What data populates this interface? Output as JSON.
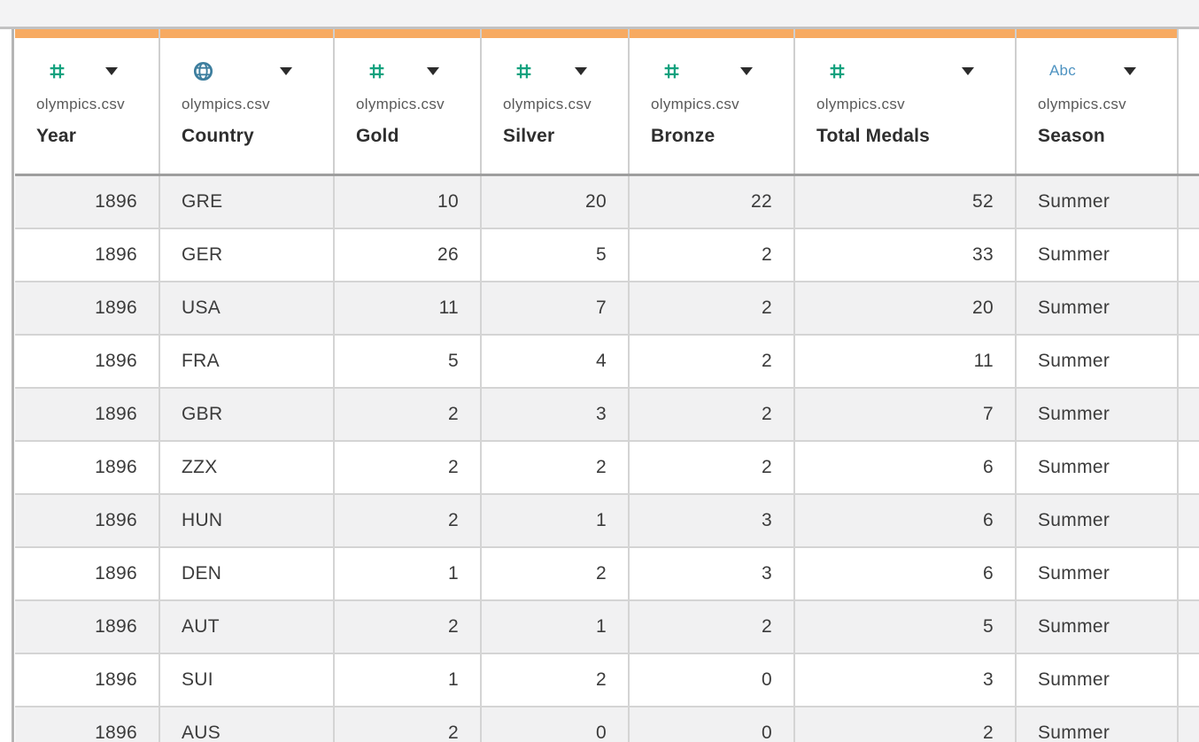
{
  "source_file": "olympics.csv",
  "type_labels": {
    "string": "Abc"
  },
  "colors": {
    "accent_strip": "#F7AA61",
    "number_icon": "#12A17E",
    "geo_icon": "#3D7E9E",
    "string_icon": "#4E93C1",
    "row_stripe": "#f1f1f2"
  },
  "columns": [
    {
      "name": "Year",
      "source": "olympics.csv",
      "type": "number",
      "align": "right"
    },
    {
      "name": "Country",
      "source": "olympics.csv",
      "type": "geographic",
      "align": "left"
    },
    {
      "name": "Gold",
      "source": "olympics.csv",
      "type": "number",
      "align": "right"
    },
    {
      "name": "Silver",
      "source": "olympics.csv",
      "type": "number",
      "align": "right"
    },
    {
      "name": "Bronze",
      "source": "olympics.csv",
      "type": "number",
      "align": "right"
    },
    {
      "name": "Total Medals",
      "source": "olympics.csv",
      "type": "number",
      "align": "right"
    },
    {
      "name": "Season",
      "source": "olympics.csv",
      "type": "string",
      "align": "left"
    }
  ],
  "rows": [
    [
      "1896",
      "GRE",
      "10",
      "20",
      "22",
      "52",
      "Summer"
    ],
    [
      "1896",
      "GER",
      "26",
      "5",
      "2",
      "33",
      "Summer"
    ],
    [
      "1896",
      "USA",
      "11",
      "7",
      "2",
      "20",
      "Summer"
    ],
    [
      "1896",
      "FRA",
      "5",
      "4",
      "2",
      "11",
      "Summer"
    ],
    [
      "1896",
      "GBR",
      "2",
      "3",
      "2",
      "7",
      "Summer"
    ],
    [
      "1896",
      "ZZX",
      "2",
      "2",
      "2",
      "6",
      "Summer"
    ],
    [
      "1896",
      "HUN",
      "2",
      "1",
      "3",
      "6",
      "Summer"
    ],
    [
      "1896",
      "DEN",
      "1",
      "2",
      "3",
      "6",
      "Summer"
    ],
    [
      "1896",
      "AUT",
      "2",
      "1",
      "2",
      "5",
      "Summer"
    ],
    [
      "1896",
      "SUI",
      "1",
      "2",
      "0",
      "3",
      "Summer"
    ],
    [
      "1896",
      "AUS",
      "2",
      "0",
      "0",
      "2",
      "Summer"
    ]
  ]
}
